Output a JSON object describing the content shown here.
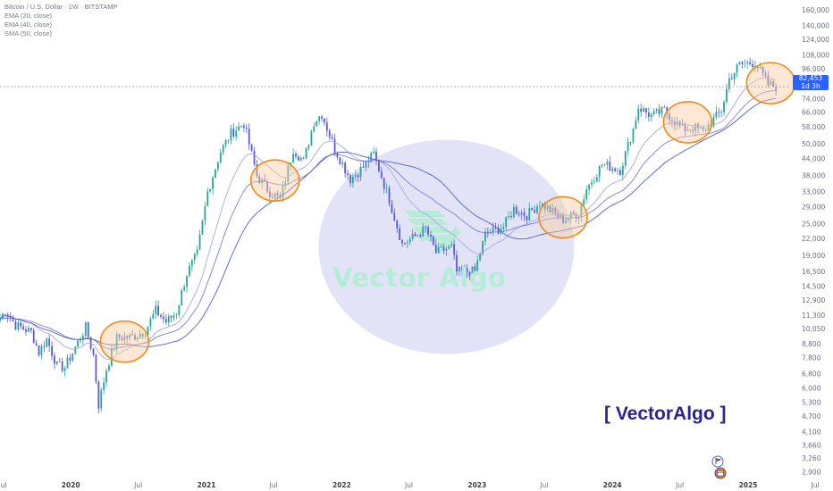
{
  "legend": {
    "symbol": "Bitcoin / U.S. Dollar · 1W · BITSTAMP",
    "ema20": "EMA (20, close)",
    "ema40": "EMA (40, close)",
    "sma50": "SMA (50, close)"
  },
  "last_price": {
    "value": "82,453",
    "countdown": "1d 3h"
  },
  "watermark": "Vector Algo",
  "brand": "[ VectorAlgo ]",
  "colors": {
    "up": "#26a69a",
    "down": "#5b5bd6",
    "ema20": "#a9a9dd",
    "ema40": "#7a7fd0",
    "sma50": "#4c5fd5",
    "highlight_fill": "#f8cba0",
    "highlight_stroke": "#f08c16",
    "zone": "#e2e3f7",
    "watermark": "#b4ecd6",
    "brand": "#2a2394",
    "price_tag": "#2962ff"
  },
  "icons": [
    "flag-icon",
    "calendar-icon"
  ],
  "chart_data": {
    "type": "candlestick",
    "scale": "log",
    "ylim": [
      2700,
      175000
    ],
    "y_ticks": [
      "160,000",
      "140,000",
      "124,000",
      "108,000",
      "96,000",
      "82,453",
      "74,000",
      "66,000",
      "58,000",
      "50,000",
      "44,000",
      "38,000",
      "33,000",
      "29,000",
      "25,000",
      "22,000",
      "19,000",
      "16,500",
      "14,500",
      "12,900",
      "11,300",
      "10,050",
      "8,800",
      "7,800",
      "6,800",
      "6,000",
      "5,300",
      "4,700",
      "4,100",
      "3,660",
      "3,260",
      "2,900"
    ],
    "x_ticks": [
      "Jul",
      "2020",
      "Jul",
      "2021",
      "Jul",
      "2022",
      "Jul",
      "2023",
      "Jul",
      "2024",
      "Jul",
      "2025",
      "Jul"
    ],
    "x_tick_dates": [
      "2019-07-01",
      "2020-01-01",
      "2020-07-01",
      "2021-01-01",
      "2021-07-01",
      "2022-01-01",
      "2022-07-01",
      "2023-01-01",
      "2023-07-01",
      "2024-01-01",
      "2024-07-01",
      "2025-01-01",
      "2025-07-01"
    ],
    "xlim": [
      "2019-06-24",
      "2025-08-18"
    ],
    "price_line": 82453,
    "anchors": [
      [
        "2019-06-24",
        11000
      ],
      [
        "2019-07-08",
        11800
      ],
      [
        "2019-08-05",
        10400
      ],
      [
        "2019-09-16",
        9800
      ],
      [
        "2019-10-07",
        8200
      ],
      [
        "2019-10-28",
        9200
      ],
      [
        "2019-11-25",
        7300
      ],
      [
        "2019-12-16",
        7200
      ],
      [
        "2020-02-10",
        10200
      ],
      [
        "2020-03-02",
        8000
      ],
      [
        "2020-03-16",
        5200
      ],
      [
        "2020-04-06",
        7100
      ],
      [
        "2020-05-04",
        9300
      ],
      [
        "2020-06-15",
        9400
      ],
      [
        "2020-07-20",
        9900
      ],
      [
        "2020-08-17",
        11800
      ],
      [
        "2020-09-14",
        10700
      ],
      [
        "2020-10-12",
        11600
      ],
      [
        "2020-11-09",
        16300
      ],
      [
        "2020-12-07",
        19300
      ],
      [
        "2021-01-04",
        33000
      ],
      [
        "2021-02-08",
        47000
      ],
      [
        "2021-03-08",
        55000
      ],
      [
        "2021-04-12",
        60000
      ],
      [
        "2021-05-17",
        38000
      ],
      [
        "2021-06-21",
        33000
      ],
      [
        "2021-07-19",
        31000
      ],
      [
        "2021-08-23",
        48000
      ],
      [
        "2021-09-20",
        43000
      ],
      [
        "2021-10-18",
        61000
      ],
      [
        "2021-11-08",
        65000
      ],
      [
        "2021-12-13",
        48000
      ],
      [
        "2022-01-24",
        37000
      ],
      [
        "2022-02-28",
        41000
      ],
      [
        "2022-03-28",
        46000
      ],
      [
        "2022-05-09",
        31000
      ],
      [
        "2022-06-13",
        21000
      ],
      [
        "2022-07-18",
        22500
      ],
      [
        "2022-08-15",
        24000
      ],
      [
        "2022-09-12",
        19500
      ],
      [
        "2022-10-24",
        20500
      ],
      [
        "2022-11-07",
        16500
      ],
      [
        "2022-12-26",
        16600
      ],
      [
        "2023-01-23",
        22800
      ],
      [
        "2023-03-13",
        24500
      ],
      [
        "2023-04-10",
        28500
      ],
      [
        "2023-05-15",
        27000
      ],
      [
        "2023-06-19",
        30000
      ],
      [
        "2023-08-21",
        26000
      ],
      [
        "2023-10-02",
        27500
      ],
      [
        "2023-10-23",
        34000
      ],
      [
        "2023-12-04",
        42000
      ],
      [
        "2024-01-22",
        40000
      ],
      [
        "2024-02-26",
        57000
      ],
      [
        "2024-03-11",
        69000
      ],
      [
        "2024-04-15",
        64000
      ],
      [
        "2024-05-20",
        67000
      ],
      [
        "2024-07-08",
        57000
      ],
      [
        "2024-08-05",
        58000
      ],
      [
        "2024-09-02",
        56000
      ],
      [
        "2024-10-21",
        67000
      ],
      [
        "2024-11-11",
        88000
      ],
      [
        "2024-12-09",
        100000
      ],
      [
        "2025-01-20",
        102000
      ],
      [
        "2025-02-24",
        84000
      ],
      [
        "2025-03-17",
        82453
      ]
    ],
    "series": [
      {
        "name": "EMA (20, close)",
        "period": 20
      },
      {
        "name": "EMA (40, close)",
        "period": 40
      },
      {
        "name": "SMA (50, close)",
        "period": 50
      }
    ],
    "highlights": [
      {
        "center": [
          "2020-05-25",
          9000
        ]
      },
      {
        "center": [
          "2021-07-05",
          36500
        ]
      },
      {
        "center": [
          "2023-08-21",
          26500
        ]
      },
      {
        "center": [
          "2024-07-22",
          60500
        ]
      },
      {
        "center": [
          "2025-03-03",
          85000
        ]
      }
    ],
    "zone": {
      "center": [
        "2022-10-10",
        20500
      ]
    }
  }
}
